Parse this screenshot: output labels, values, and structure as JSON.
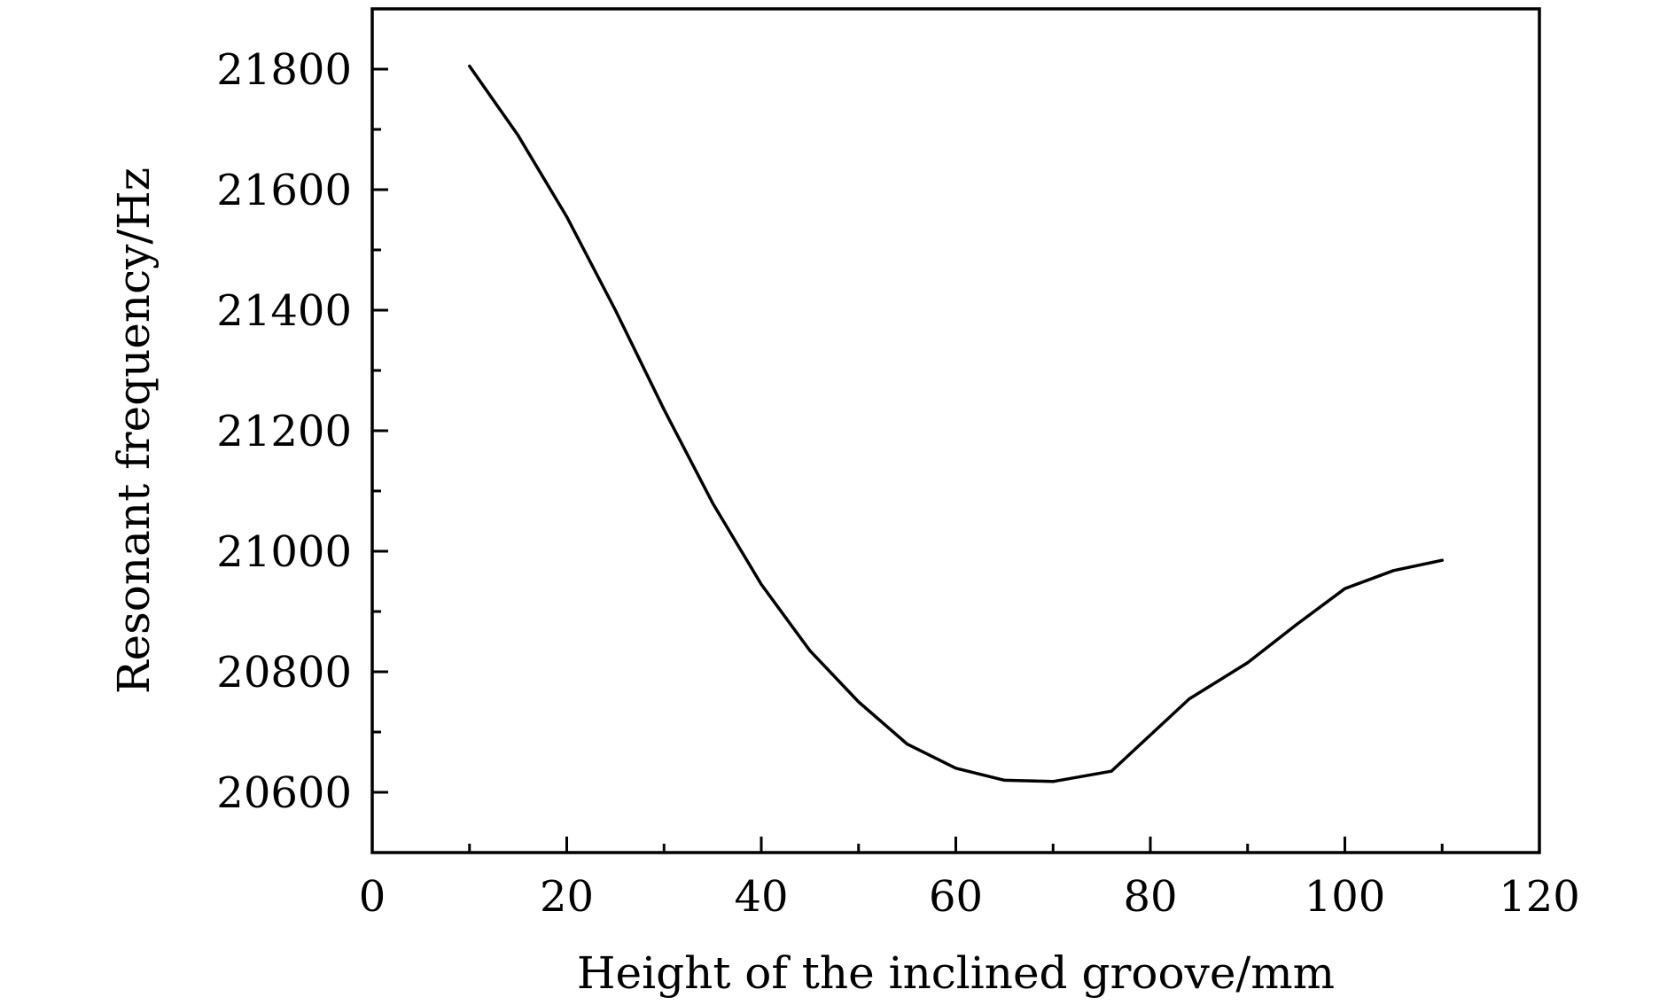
{
  "chart_data": {
    "type": "line",
    "title": "",
    "xlabel": "Height of the inclined groove/mm",
    "ylabel": "Resonant frequency/Hz",
    "xlim": [
      0,
      120
    ],
    "ylim": [
      20500,
      21900
    ],
    "x_ticks": [
      0,
      20,
      40,
      60,
      80,
      100,
      120
    ],
    "x_tick_labels": [
      "0",
      "20",
      "40",
      "60",
      "80",
      "100",
      "120"
    ],
    "y_ticks": [
      20600,
      20800,
      21000,
      21200,
      21400,
      21600,
      21800
    ],
    "y_tick_labels": [
      "20600",
      "20800",
      "21000",
      "21200",
      "21400",
      "21600",
      "21800"
    ],
    "grid": false,
    "legend": "none",
    "line_color": "#000000",
    "series": [
      {
        "x": [
          10,
          15,
          20,
          25,
          30,
          35,
          40,
          45,
          50,
          55,
          60,
          65,
          70,
          76,
          80,
          84,
          90,
          95,
          100,
          105,
          110
        ],
        "y": [
          21805,
          21690,
          21555,
          21400,
          21235,
          21080,
          20945,
          20835,
          20750,
          20680,
          20640,
          20620,
          20618,
          20635,
          20695,
          20755,
          20815,
          20878,
          20938,
          20968,
          20985
        ]
      }
    ]
  }
}
